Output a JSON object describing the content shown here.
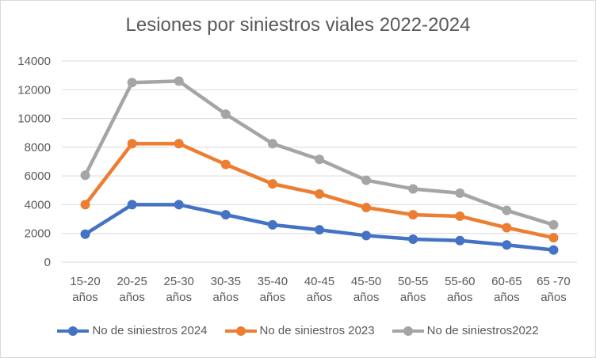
{
  "chart_data": {
    "type": "line",
    "title": "Lesiones por siniestros viales 2022-2024",
    "xlabel": "",
    "ylabel": "",
    "categories": [
      "15-20 años",
      "20-25 años",
      "25-30 años",
      "30-35 años",
      "35-40 años",
      "40-45 años",
      "45-50 años",
      "50-55 años",
      "55-60 años",
      "60-65 años",
      "65 -70 años"
    ],
    "ylim": [
      0,
      14000
    ],
    "yticks": [
      0,
      2000,
      4000,
      6000,
      8000,
      10000,
      12000,
      14000
    ],
    "grid": true,
    "legend_position": "bottom",
    "series": [
      {
        "name": "No de siniestros 2024",
        "color": "#4472c4",
        "values": [
          1950,
          4000,
          4000,
          3300,
          2600,
          2250,
          1850,
          1600,
          1500,
          1200,
          850
        ]
      },
      {
        "name": "No de siniestros 2023",
        "color": "#ed7d31",
        "values": [
          4000,
          8250,
          8250,
          6800,
          5450,
          4750,
          3800,
          3300,
          3200,
          2400,
          1700
        ]
      },
      {
        "name": "No de siniestros2022",
        "color": "#a5a5a5",
        "values": [
          6050,
          12500,
          12600,
          10300,
          8250,
          7150,
          5700,
          5100,
          4800,
          3600,
          2600
        ]
      }
    ]
  }
}
